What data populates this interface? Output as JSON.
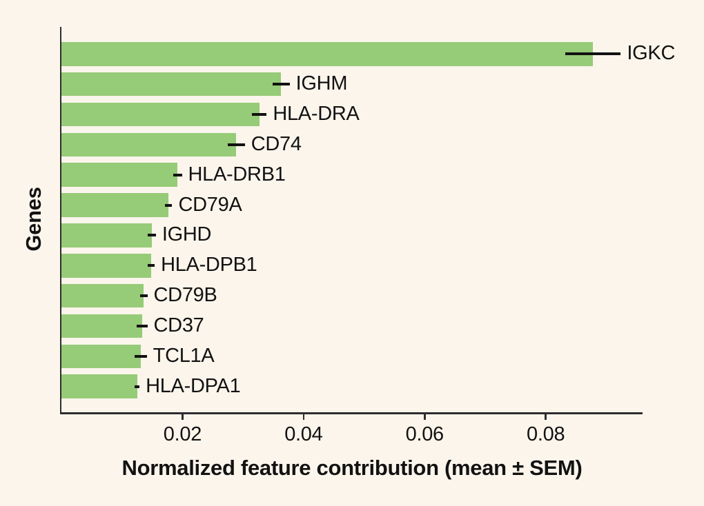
{
  "figure": {
    "background_color": "#FBF5EC",
    "bar_color": "#96CB77",
    "axis_color": "#2D2D2D",
    "errorbar_color": "#121212",
    "text_color": "#121212"
  },
  "chart_data": {
    "type": "bar",
    "orientation": "horizontal",
    "title": "",
    "xlabel": "Normalized feature contribution (mean ± SEM)",
    "ylabel": "Genes",
    "xlim": [
      0,
      0.096
    ],
    "xticks": [
      0.02,
      0.04,
      0.06,
      0.08
    ],
    "xtick_labels": [
      "0.02",
      "0.04",
      "0.06",
      "0.08"
    ],
    "grid": false,
    "legend": null,
    "sorted": "descending",
    "categories": [
      "IGKC",
      "IGHM",
      "HLA-DRA",
      "CD74",
      "HLA-DRB1",
      "CD79A",
      "IGHD",
      "HLA-DPB1",
      "CD79B",
      "CD37",
      "TCL1A",
      "HLA-DPA1"
    ],
    "values": [
      0.0878,
      0.0363,
      0.0327,
      0.0289,
      0.0192,
      0.0177,
      0.0149,
      0.0148,
      0.0136,
      0.0133,
      0.0131,
      0.0125
    ],
    "sem": [
      0.0046,
      0.0014,
      0.0012,
      0.0014,
      0.0007,
      0.0006,
      0.0007,
      0.0006,
      0.0006,
      0.0009,
      0.001,
      0.0004
    ],
    "error_bar_style": "horizontal-line-no-caps"
  }
}
